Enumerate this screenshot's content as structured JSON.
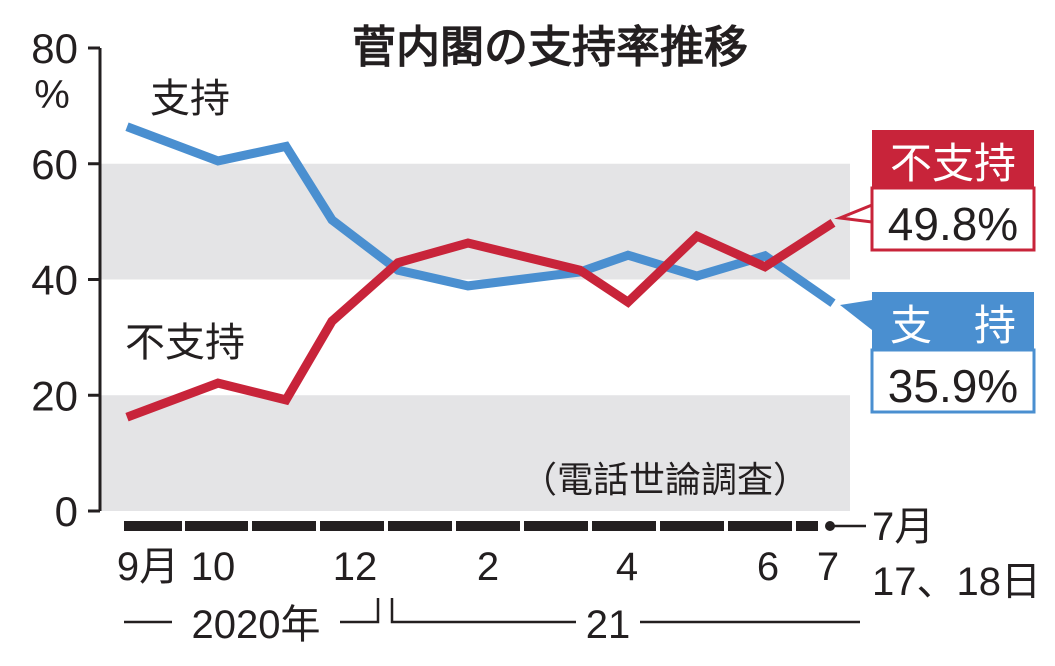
{
  "chart_data": {
    "type": "line",
    "title": "菅内閣の支持率推移",
    "note": "（電話世論調査）",
    "ylabel_unit": "%",
    "ylim": [
      0,
      80
    ],
    "yticks": [
      "0",
      "20",
      "40",
      "60",
      "80"
    ],
    "grid": "alternating bands",
    "x_tick_labels": [
      "9月",
      "10",
      "12",
      "2",
      "4",
      "6",
      "7"
    ],
    "x_end_label": [
      "7月",
      "17、18日"
    ],
    "year_labels": [
      "2020年",
      "21"
    ],
    "series": [
      {
        "name": "支持",
        "color": "#4a8fd0",
        "values": [
          66.4,
          60.5,
          63.0,
          50.3,
          41.6,
          38.9,
          41.3,
          44.2,
          40.6,
          44.1,
          35.9
        ]
      },
      {
        "name": "不支持",
        "color": "#c8243a",
        "values": [
          16.2,
          22.1,
          19.2,
          32.8,
          42.9,
          46.3,
          41.6,
          36.1,
          47.5,
          42.2,
          49.8
        ]
      }
    ],
    "callouts": [
      {
        "label": "不支持",
        "value": "49.8%",
        "color": "#c8243a"
      },
      {
        "label": "支　持",
        "value": "35.9%",
        "color": "#4a8fd0"
      }
    ],
    "band_color": "#e4e4e6"
  }
}
